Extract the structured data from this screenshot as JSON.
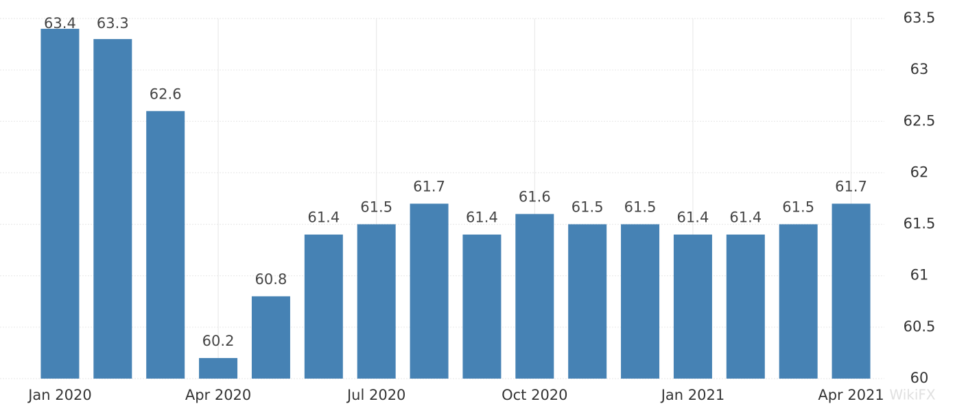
{
  "chart_data": {
    "type": "bar",
    "categories": [
      "Jan 2020",
      null,
      null,
      "Apr 2020",
      null,
      null,
      "Jul 2020",
      null,
      null,
      "Oct 2020",
      null,
      null,
      "Jan 2021",
      null,
      null,
      "Apr 2021"
    ],
    "values": [
      63.4,
      63.3,
      62.6,
      60.2,
      60.8,
      61.4,
      61.5,
      61.7,
      61.4,
      61.6,
      61.5,
      61.5,
      61.4,
      61.4,
      61.5,
      61.7
    ],
    "color": "#4682b4",
    "ylim": [
      60,
      63.5
    ],
    "yticks": [
      60,
      60.5,
      61,
      61.5,
      62,
      62.5,
      63,
      63.5
    ],
    "grid": true,
    "y_axis_side": "right",
    "watermark": "WikiFX"
  }
}
